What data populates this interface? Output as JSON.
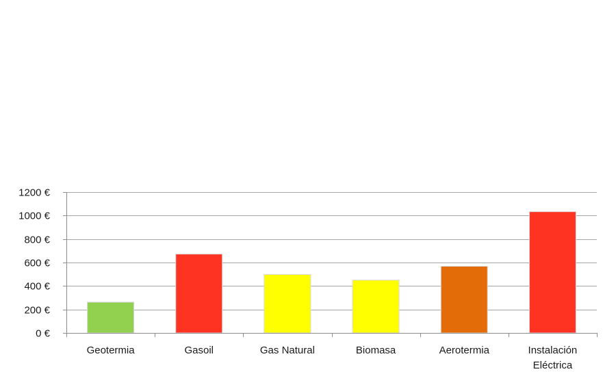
{
  "chart_data": {
    "type": "bar",
    "title": "",
    "xlabel": "",
    "ylabel": "",
    "categories": [
      [
        "Geotermia"
      ],
      [
        "Gasoil"
      ],
      [
        "Gas Natural"
      ],
      [
        "Biomasa"
      ],
      [
        "Aerotermia"
      ],
      [
        "Instalación",
        "Eléctrica"
      ]
    ],
    "values": [
      262,
      672,
      498,
      450,
      568,
      1033
    ],
    "bar_colors": [
      "#92d050",
      "#ff3322",
      "#ffff00",
      "#ffff00",
      "#e36c09",
      "#ff3322"
    ],
    "bar_stroke": "#d9d9d9",
    "ylim": [
      0,
      1200
    ],
    "y_ticks": [
      0,
      200,
      400,
      600,
      800,
      1000,
      1200
    ],
    "y_tick_labels": [
      "0 €",
      "200 €",
      "400 €",
      "600 €",
      "800 €",
      "1000 €",
      "1200 €"
    ],
    "grid": true,
    "grid_color": "#a6a6a6",
    "axis_color": "#8c8c8c",
    "legend": "none"
  }
}
